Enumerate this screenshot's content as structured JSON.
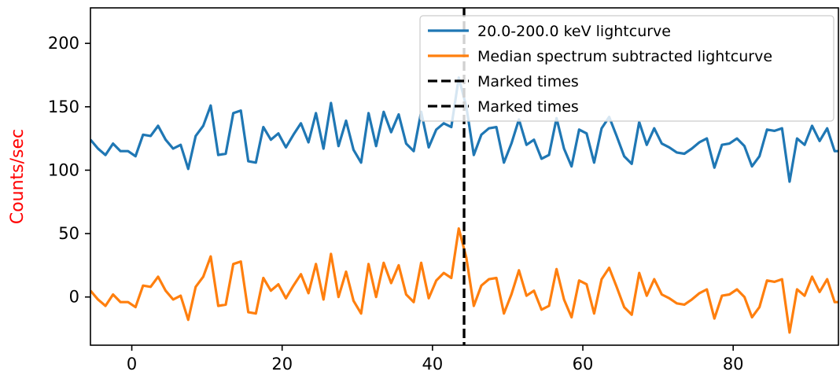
{
  "chart_data": {
    "type": "line",
    "ylabel": "Counts/sec",
    "ylabel_color": "#ff0000",
    "xlim": [
      -5.5,
      94
    ],
    "ylim": [
      -38,
      228
    ],
    "xticks": [
      0,
      20,
      40,
      60,
      80
    ],
    "yticks": [
      0,
      50,
      100,
      150,
      200
    ],
    "grid": false,
    "legend_position": "top-right",
    "x": [
      -5.5,
      -4.5,
      -3.5,
      -2.5,
      -1.5,
      -0.5,
      0.5,
      1.5,
      2.5,
      3.5,
      4.5,
      5.5,
      6.5,
      7.5,
      8.5,
      9.5,
      10.5,
      11.5,
      12.5,
      13.5,
      14.5,
      15.5,
      16.5,
      17.5,
      18.5,
      19.5,
      20.5,
      21.5,
      22.5,
      23.5,
      24.5,
      25.5,
      26.5,
      27.5,
      28.5,
      29.5,
      30.5,
      31.5,
      32.5,
      33.5,
      34.5,
      35.5,
      36.5,
      37.5,
      38.5,
      39.5,
      40.5,
      41.5,
      42.5,
      43.5,
      44.5,
      45.5,
      46.5,
      47.5,
      48.5,
      49.5,
      50.5,
      51.5,
      52.5,
      53.5,
      54.5,
      55.5,
      56.5,
      57.5,
      58.5,
      59.5,
      60.5,
      61.5,
      62.5,
      63.5,
      64.5,
      65.5,
      66.5,
      67.5,
      68.5,
      69.5,
      70.5,
      71.5,
      72.5,
      73.5,
      74.5,
      75.5,
      76.5,
      77.5,
      78.5,
      79.5,
      80.5,
      81.5,
      82.5,
      83.5,
      84.5,
      85.5,
      86.5,
      87.5,
      88.5,
      89.5,
      90.5,
      91.5,
      92.5,
      93.5,
      94
    ],
    "series": [
      {
        "name": "20.0-200.0 keV lightcurve",
        "color": "#1f77b4",
        "values": [
          124,
          117,
          112,
          121,
          115,
          115,
          111,
          128,
          127,
          135,
          124,
          117,
          120,
          101,
          127,
          135,
          151,
          112,
          113,
          145,
          147,
          107,
          106,
          134,
          124,
          129,
          118,
          128,
          137,
          122,
          145,
          117,
          153,
          119,
          139,
          116,
          106,
          145,
          119,
          146,
          130,
          144,
          121,
          115,
          146,
          118,
          132,
          137,
          134,
          173,
          150,
          112,
          128,
          133,
          134,
          106,
          121,
          140,
          120,
          124,
          109,
          112,
          141,
          117,
          103,
          132,
          129,
          106,
          133,
          142,
          127,
          111,
          105,
          138,
          120,
          133,
          121,
          118,
          114,
          113,
          117,
          122,
          125,
          102,
          120,
          121,
          125,
          119,
          103,
          111,
          132,
          131,
          133,
          91,
          125,
          120,
          135,
          123,
          133,
          115,
          115
        ]
      },
      {
        "name": "Median spectrum subtracted lightcurve",
        "color": "#ff7f0e",
        "values": [
          5,
          -2,
          -7,
          2,
          -4,
          -4,
          -8,
          9,
          8,
          16,
          5,
          -2,
          1,
          -18,
          8,
          16,
          32,
          -7,
          -6,
          26,
          28,
          -12,
          -13,
          15,
          5,
          10,
          -1,
          9,
          18,
          3,
          26,
          -2,
          34,
          0,
          20,
          -3,
          -13,
          26,
          0,
          27,
          11,
          25,
          2,
          -4,
          27,
          -1,
          13,
          19,
          15,
          54,
          31,
          -7,
          9,
          14,
          15,
          -13,
          2,
          21,
          1,
          5,
          -10,
          -7,
          22,
          -2,
          -16,
          13,
          10,
          -13,
          14,
          23,
          8,
          -8,
          -14,
          19,
          1,
          14,
          2,
          -1,
          -5,
          -6,
          -2,
          3,
          6,
          -17,
          1,
          2,
          6,
          0,
          -16,
          -8,
          13,
          12,
          14,
          -28,
          6,
          1,
          16,
          4,
          14,
          -4,
          -4
        ]
      }
    ],
    "vlines": [
      {
        "name": "Marked times",
        "x": 44.2,
        "color": "#000000"
      },
      {
        "name": "Marked times",
        "x": 44.2,
        "color": "#000000"
      }
    ]
  }
}
